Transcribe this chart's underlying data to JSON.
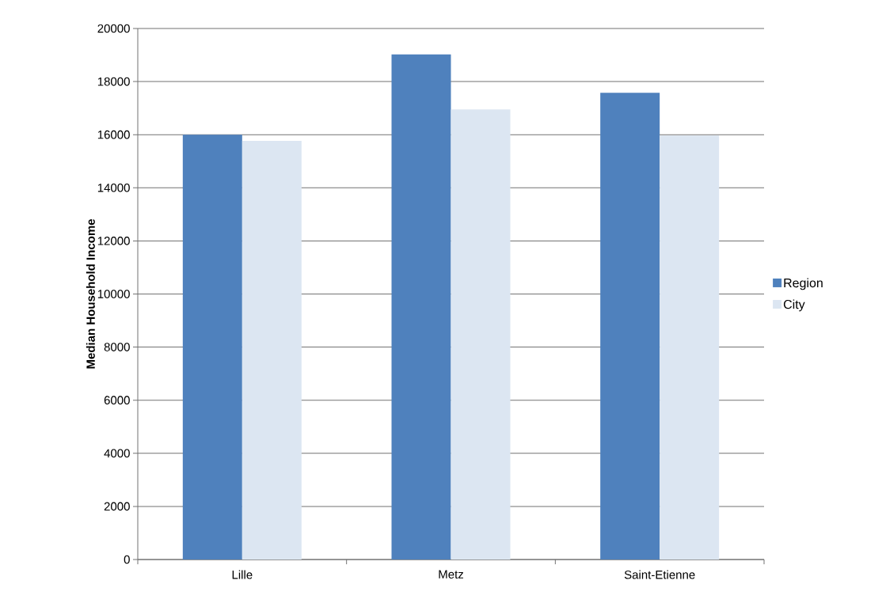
{
  "chart_data": {
    "type": "bar",
    "ylabel": "Median Household Income",
    "categories": [
      "Lille",
      "Metz",
      "Saint-Etienne"
    ],
    "series": [
      {
        "name": "Region",
        "color": "#4f81bd",
        "values": [
          16000,
          19020,
          17580
        ]
      },
      {
        "name": "City",
        "color": "#dce6f2",
        "values": [
          15770,
          16950,
          15970
        ]
      }
    ],
    "ylim": [
      0,
      20000
    ],
    "yticks": [
      0,
      2000,
      4000,
      6000,
      8000,
      10000,
      12000,
      14000,
      16000,
      18000,
      20000
    ],
    "grid": "y",
    "legend": "right"
  }
}
